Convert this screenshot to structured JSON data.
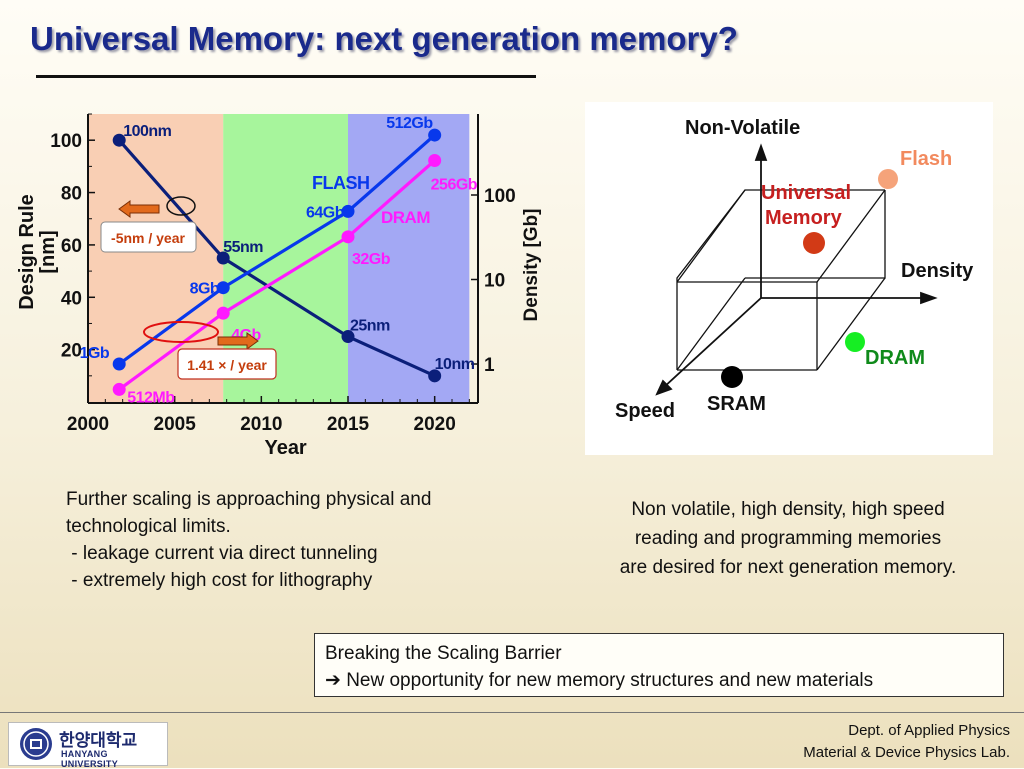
{
  "slide": {
    "title": "Universal Memory: next generation memory?",
    "left_text": [
      "Further scaling is approaching physical and",
      "technological limits.",
      " - leakage current via direct tunneling",
      " - extremely high cost for lithography"
    ],
    "right_text": [
      "Non volatile, high density, high speed",
      "reading and programming memories",
      "are desired for next generation memory."
    ],
    "callout": {
      "line1": "Breaking the Scaling Barrier",
      "line2_arrow": "➔",
      "line2": "New opportunity for new memory structures and new materials"
    },
    "footer": {
      "line1": "Dept. of Applied Physics",
      "line2": "Material & Device Physics Lab."
    },
    "logo": {
      "korean": "한양대학교",
      "english": "HANYANG UNIVERSITY"
    },
    "colors": {
      "title": "#1a2a8c",
      "band_past": "#f9cfb4",
      "band_mid": "#a7f59c",
      "band_future": "#a3a8f4",
      "design_rule": "#0b1f7a",
      "flash": "#0838ec",
      "dram": "#ff1aff",
      "annotation_orange": "#e26a1c"
    }
  },
  "chart_data": [
    {
      "type": "line",
      "xlabel": "Year",
      "ylabel": "Design Rule [nm]",
      "ylabel_lines": [
        "Design Rule",
        "[nm]"
      ],
      "y2label": "Density [Gb]",
      "xlim": [
        2000,
        2022
      ],
      "ylim": [
        0,
        110
      ],
      "y2_scale": "log",
      "x_ticks": [
        "2000",
        "2005",
        "2010",
        "2015",
        "2020"
      ],
      "y_ticks": [
        "20",
        "40",
        "60",
        "80",
        "100"
      ],
      "y2_ticks": [
        "1",
        "10",
        "100"
      ],
      "bands": [
        {
          "x": [
            2000,
            2007.8
          ],
          "name": "past"
        },
        {
          "x": [
            2007.8,
            2015
          ],
          "name": "mid"
        },
        {
          "x": [
            2015,
            2022
          ],
          "name": "future"
        }
      ],
      "series": [
        {
          "key": "design_rule",
          "axis": "left",
          "x": [
            2001.8,
            2007.8,
            2015,
            2020
          ],
          "y": [
            100,
            55,
            25,
            10
          ],
          "point_labels": [
            "100nm",
            "55nm",
            "25nm",
            "10nm"
          ]
        },
        {
          "key": "flash",
          "name": "FLASH",
          "axis": "right",
          "x": [
            2001.8,
            2007.8,
            2015,
            2020
          ],
          "y": [
            1,
            8,
            64,
            512
          ],
          "point_labels": [
            "1Gb",
            "8Gb",
            "64Gb",
            "512Gb"
          ]
        },
        {
          "key": "dram",
          "name": "DRAM",
          "axis": "right",
          "x": [
            2001.8,
            2007.8,
            2015,
            2020
          ],
          "y": [
            0.5,
            4,
            32,
            256
          ],
          "point_labels": [
            "512Mb",
            "4Gb",
            "32Gb",
            "256Gb"
          ]
        }
      ],
      "annotations": [
        "-5nm / year",
        "1.41 × / year"
      ]
    }
  ],
  "diagram": {
    "axis_labels": {
      "non_volatile": "Non-Volatile",
      "density": "Density",
      "speed": "Speed"
    },
    "points": {
      "flash": "Flash",
      "universal": "Universal\nMemory",
      "universal_line1": "Universal",
      "universal_line2": "Memory",
      "dram": "DRAM",
      "sram": "SRAM"
    },
    "colors": {
      "flash": "#f5a37a",
      "universal": "#d23a16",
      "dram": "#16ee23",
      "sram": "#000000",
      "universal_text": "#c61f1f",
      "dram_text": "#0f8a1a"
    }
  }
}
